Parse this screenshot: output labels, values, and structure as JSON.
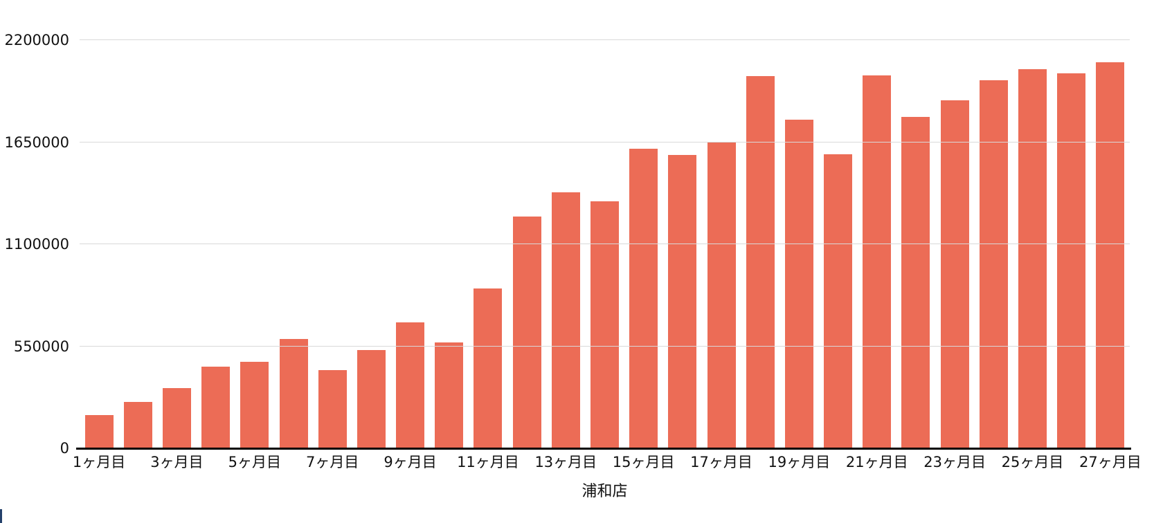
{
  "chart_data": {
    "type": "bar",
    "title": "浦和店",
    "bar_color": "#EC6C56",
    "background": "#ffffff",
    "gridline_color": "#d9d9d9",
    "axis_color": "#000000",
    "grid": "horizontal",
    "legend": "none",
    "ylim": [
      0,
      2200000
    ],
    "y_ticks": [
      0,
      550000,
      1100000,
      1650000,
      2200000
    ],
    "y_tick_labels": [
      "0",
      "550000",
      "1100000",
      "1650000",
      "2200000"
    ],
    "n_bars": 27,
    "x_tick_positions": [
      1,
      3,
      5,
      7,
      9,
      11,
      13,
      15,
      17,
      19,
      21,
      23,
      25,
      27
    ],
    "x_tick_labels": [
      "1ヶ月目",
      "3ヶ月目",
      "5ヶ月目",
      "7ヶ月目",
      "9ヶ月目",
      "11ヶ月目",
      "13ヶ月目",
      "15ヶ月目",
      "17ヶ月目",
      "19ヶ月目",
      "21ヶ月目",
      "23ヶ月目",
      "25ヶ月目",
      "27ヶ月目"
    ],
    "values": [
      180000,
      250000,
      325000,
      440000,
      465000,
      590000,
      420000,
      530000,
      680000,
      570000,
      860000,
      1250000,
      1380000,
      1330000,
      1615000,
      1580000,
      1650000,
      2005000,
      1770000,
      1585000,
      2010000,
      1785000,
      1875000,
      1985000,
      2045000,
      2020000,
      2080000
    ]
  }
}
